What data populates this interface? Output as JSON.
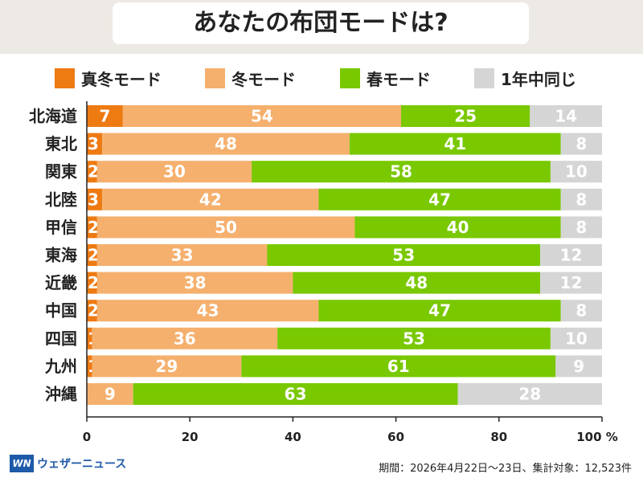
{
  "title": "あなたの布団モードは?",
  "legend": [
    {
      "label": "真冬モード",
      "color": "#ee7a12"
    },
    {
      "label": "冬モード",
      "color": "#f5b06e"
    },
    {
      "label": "春モード",
      "color": "#79c800"
    },
    {
      "label": "1年中同じ",
      "color": "#d5d5d5"
    }
  ],
  "chart_data": {
    "type": "bar",
    "orientation": "horizontal",
    "stacked": true,
    "categories": [
      "北海道",
      "東北",
      "関東",
      "北陸",
      "甲信",
      "東海",
      "近畿",
      "中国",
      "四国",
      "九州",
      "沖縄"
    ],
    "series": [
      {
        "name": "真冬モード",
        "color": "#ee7a12",
        "values": [
          7,
          3,
          2,
          3,
          2,
          2,
          2,
          2,
          1,
          1,
          0
        ]
      },
      {
        "name": "冬モード",
        "color": "#f5b06e",
        "values": [
          54,
          48,
          30,
          42,
          50,
          33,
          38,
          43,
          36,
          29,
          9
        ]
      },
      {
        "name": "春モード",
        "color": "#79c800",
        "values": [
          25,
          41,
          58,
          47,
          40,
          53,
          48,
          47,
          53,
          61,
          63
        ]
      },
      {
        "name": "1年中同じ",
        "color": "#d5d5d5",
        "values": [
          14,
          8,
          10,
          8,
          8,
          12,
          12,
          8,
          10,
          9,
          28
        ]
      }
    ],
    "xlim": [
      0,
      100
    ],
    "xticks": [
      "0",
      "20",
      "40",
      "60",
      "80",
      "100 %"
    ]
  },
  "footer": {
    "brand_mark": "WN",
    "brand": "ウェザーニュース",
    "note": "期間：2026年4月22日〜23日、集計対象：12,523件"
  }
}
